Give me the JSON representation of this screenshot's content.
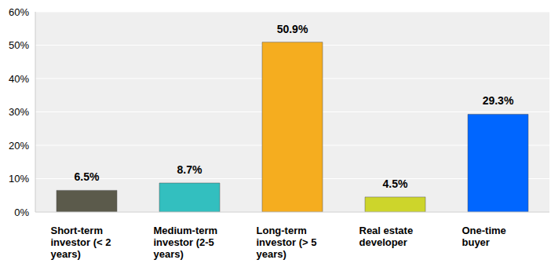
{
  "chart_data": {
    "type": "bar",
    "categories": [
      "Short-term investor (< 2 years)",
      "Medium-term investor (2-5 years)",
      "Long-term investor (> 5 years)",
      "Real estate developer",
      "One-time buyer"
    ],
    "values": [
      6.5,
      8.7,
      50.9,
      4.5,
      29.3
    ],
    "value_labels": [
      "6.5%",
      "8.7%",
      "50.9%",
      "4.5%",
      "29.3%"
    ],
    "colors": [
      "#5b5a4b",
      "#33bfbf",
      "#f5ad1f",
      "#cdd52b",
      "#0066ff"
    ],
    "ylim": [
      0,
      60
    ],
    "yticks": [
      {
        "value": 0,
        "label": "0%"
      },
      {
        "value": 10,
        "label": "10%"
      },
      {
        "value": 20,
        "label": "20%"
      },
      {
        "value": 30,
        "label": "30%"
      },
      {
        "value": 40,
        "label": "40%"
      },
      {
        "value": 50,
        "label": "50%"
      },
      {
        "value": 60,
        "label": "60%"
      }
    ],
    "grid": true,
    "data_labels": true
  }
}
